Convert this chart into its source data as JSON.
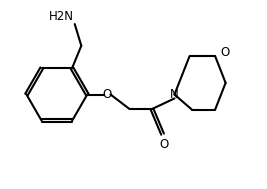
{
  "background_color": "#ffffff",
  "line_color": "#000000",
  "line_width": 1.5,
  "font_size": 8.5,
  "figsize": [
    2.67,
    1.89
  ],
  "dpi": 100,
  "NH2_label": "H2N",
  "O_label": "O",
  "N_label": "N"
}
